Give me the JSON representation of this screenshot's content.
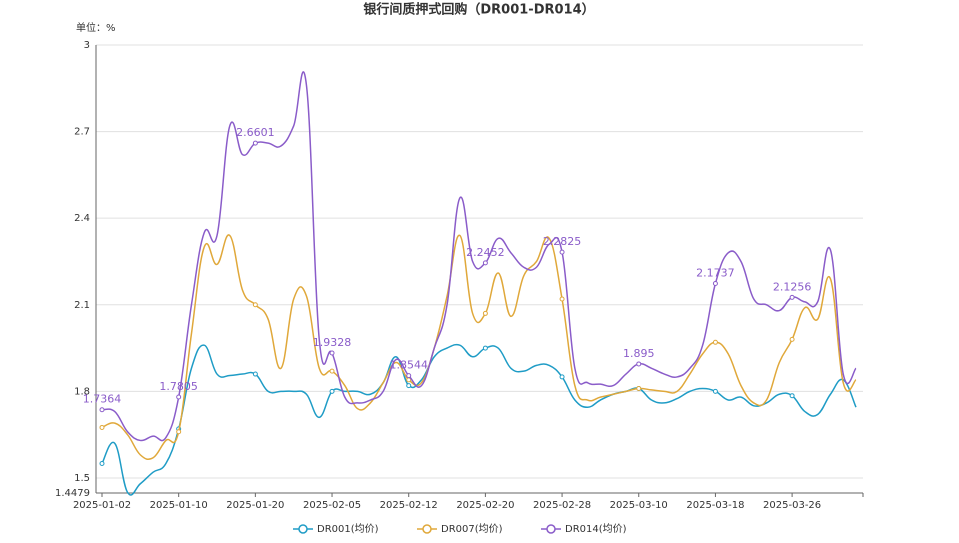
{
  "chart_data": {
    "type": "line",
    "title": "银行间质押式回购（DR001-DR014）",
    "y_unit_label": "单位：%",
    "categories": [
      "2025-01-02",
      null,
      null,
      null,
      null,
      null,
      "2025-01-10",
      null,
      null,
      null,
      null,
      null,
      "2025-01-20",
      null,
      null,
      null,
      null,
      null,
      "2025-02-05",
      null,
      null,
      null,
      null,
      null,
      "2025-02-12",
      null,
      null,
      null,
      null,
      null,
      "2025-02-20",
      null,
      null,
      null,
      null,
      null,
      "2025-02-28",
      null,
      null,
      null,
      null,
      null,
      "2025-03-10",
      null,
      null,
      null,
      null,
      null,
      "2025-03-18",
      null,
      null,
      null,
      null,
      null,
      "2025-03-26",
      null,
      null,
      null,
      null,
      null
    ],
    "series": [
      {
        "name": "DR001(均价)",
        "color": "#1f9cc6",
        "values": [
          1.55,
          1.62,
          1.45,
          1.48,
          1.52,
          1.55,
          1.67,
          1.88,
          1.96,
          1.86,
          1.855,
          1.86,
          1.86,
          1.8,
          1.8,
          1.8,
          1.79,
          1.71,
          1.8,
          1.8,
          1.8,
          1.79,
          1.83,
          1.92,
          1.82,
          1.84,
          1.92,
          1.95,
          1.96,
          1.92,
          1.95,
          1.95,
          1.88,
          1.87,
          1.89,
          1.89,
          1.85,
          1.77,
          1.745,
          1.77,
          1.79,
          1.8,
          1.81,
          1.77,
          1.76,
          1.775,
          1.8,
          1.81,
          1.8,
          1.77,
          1.78,
          1.75,
          1.76,
          1.79,
          1.785,
          1.73,
          1.72,
          1.79,
          1.84,
          1.745
        ]
      },
      {
        "name": "DR007(均价)",
        "color": "#e0a83a",
        "values": [
          1.675,
          1.69,
          1.65,
          1.58,
          1.57,
          1.63,
          1.66,
          2.0,
          2.3,
          2.24,
          2.34,
          2.15,
          2.1,
          2.05,
          1.88,
          2.12,
          2.13,
          1.88,
          1.87,
          1.82,
          1.74,
          1.76,
          1.83,
          1.9,
          1.84,
          1.83,
          1.95,
          2.13,
          2.34,
          2.07,
          2.07,
          2.21,
          2.06,
          2.2,
          2.25,
          2.33,
          2.12,
          1.82,
          1.77,
          1.78,
          1.79,
          1.8,
          1.81,
          1.805,
          1.8,
          1.8,
          1.86,
          1.93,
          1.97,
          1.93,
          1.82,
          1.76,
          1.77,
          1.9,
          1.98,
          2.09,
          2.05,
          2.19,
          1.83,
          1.84
        ]
      },
      {
        "name": "DR014(均价)",
        "color": "#8a5cc9",
        "values": [
          1.7364,
          1.73,
          1.66,
          1.63,
          1.645,
          1.64,
          1.7805,
          2.1,
          2.35,
          2.34,
          2.72,
          2.62,
          2.6601,
          2.66,
          2.65,
          2.72,
          2.86,
          1.98,
          1.9328,
          1.78,
          1.76,
          1.77,
          1.8,
          1.91,
          1.8544,
          1.82,
          1.95,
          2.1,
          2.47,
          2.25,
          2.2452,
          2.33,
          2.28,
          2.23,
          2.23,
          2.31,
          2.2825,
          1.88,
          1.83,
          1.825,
          1.82,
          1.86,
          1.895,
          1.88,
          1.86,
          1.85,
          1.88,
          1.96,
          2.1737,
          2.28,
          2.25,
          2.12,
          2.1,
          2.08,
          2.1256,
          2.11,
          2.11,
          2.29,
          1.86,
          1.88
        ]
      }
    ],
    "ylim": [
      1.4479,
      3
    ],
    "yticks": [
      1.4479,
      1.5,
      1.8,
      2.1,
      2.4,
      2.7,
      3
    ],
    "grid": true
  }
}
